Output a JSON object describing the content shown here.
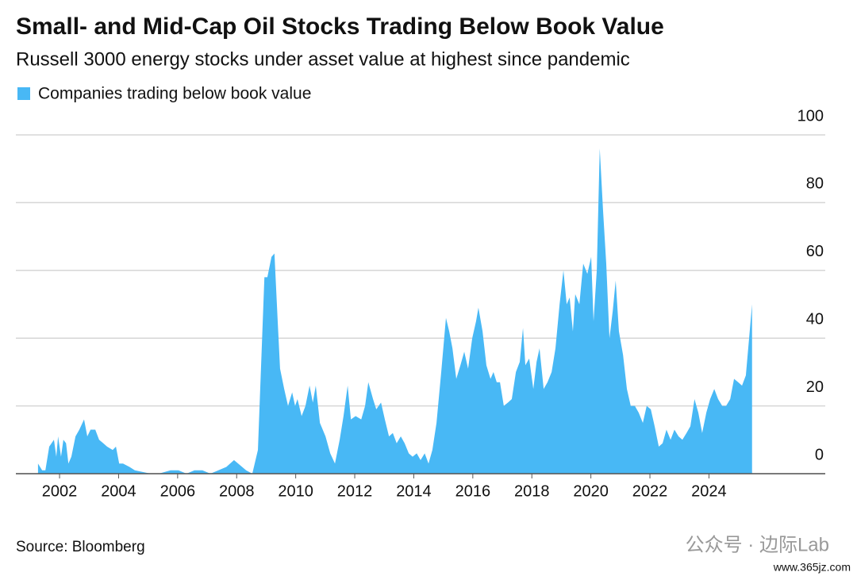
{
  "chart_data": {
    "type": "area",
    "title": "Small- and Mid-Cap Oil Stocks Trading Below Book Value",
    "subtitle": "Russell 3000 energy stocks under asset value at highest since pandemic",
    "source": "Source: Bloomberg",
    "watermark": "公众号 · 边际Lab",
    "watermark_url": "www.365jz.com",
    "xlim": [
      2000.52,
      2027.94
    ],
    "xticks": [
      2002,
      2004,
      2006,
      2008,
      2010,
      2012,
      2014,
      2016,
      2018,
      2020,
      2022,
      2024
    ],
    "ylim": [
      0,
      100
    ],
    "yticks": [
      0,
      20,
      40,
      60,
      80,
      100
    ],
    "grid": true,
    "legend": "top-left",
    "x": [
      2001.27,
      2001.41,
      2001.52,
      2001.65,
      2001.81,
      2001.89,
      2001.95,
      2002.05,
      2002.13,
      2002.22,
      2002.3,
      2002.4,
      2002.54,
      2002.67,
      2002.83,
      2002.94,
      2003.05,
      2003.21,
      2003.34,
      2003.48,
      2003.61,
      2003.8,
      2003.91,
      2004.02,
      2004.15,
      2004.37,
      2004.55,
      2004.82,
      2005.09,
      2005.36,
      2005.76,
      2006.03,
      2006.3,
      2006.57,
      2006.84,
      2007.11,
      2007.38,
      2007.65,
      2007.91,
      2008.05,
      2008.32,
      2008.53,
      2008.72,
      2008.94,
      2009.04,
      2009.18,
      2009.28,
      2009.39,
      2009.47,
      2009.61,
      2009.74,
      2009.88,
      2009.98,
      2010.06,
      2010.2,
      2010.33,
      2010.47,
      2010.58,
      2010.68,
      2010.82,
      2011.01,
      2011.17,
      2011.33,
      2011.49,
      2011.62,
      2011.76,
      2011.87,
      2012.03,
      2012.22,
      2012.35,
      2012.46,
      2012.62,
      2012.73,
      2012.89,
      2013.02,
      2013.16,
      2013.29,
      2013.42,
      2013.56,
      2013.69,
      2013.83,
      2013.96,
      2014.1,
      2014.23,
      2014.37,
      2014.5,
      2014.63,
      2014.77,
      2014.93,
      2015.09,
      2015.2,
      2015.31,
      2015.44,
      2015.58,
      2015.71,
      2015.84,
      2015.98,
      2016.11,
      2016.19,
      2016.33,
      2016.46,
      2016.6,
      2016.7,
      2016.81,
      2016.92,
      2017.05,
      2017.19,
      2017.32,
      2017.46,
      2017.59,
      2017.7,
      2017.78,
      2017.91,
      2018.05,
      2018.16,
      2018.26,
      2018.4,
      2018.53,
      2018.67,
      2018.8,
      2018.94,
      2019.07,
      2019.18,
      2019.28,
      2019.39,
      2019.47,
      2019.61,
      2019.74,
      2019.88,
      2020.01,
      2020.09,
      2020.2,
      2020.3,
      2020.41,
      2020.52,
      2020.63,
      2020.74,
      2020.84,
      2020.95,
      2021.09,
      2021.22,
      2021.35,
      2021.49,
      2021.62,
      2021.76,
      2021.89,
      2022.03,
      2022.16,
      2022.3,
      2022.43,
      2022.56,
      2022.7,
      2022.83,
      2022.97,
      2023.1,
      2023.24,
      2023.37,
      2023.51,
      2023.64,
      2023.77,
      2023.91,
      2024.04,
      2024.18,
      2024.31,
      2024.45,
      2024.58,
      2024.72,
      2024.85,
      2024.99,
      2025.12,
      2025.25,
      2025.36,
      2025.46
    ],
    "series": [
      {
        "name": "Companies trading below book value",
        "color": "#48b8f5",
        "values": [
          3,
          1,
          1,
          8,
          10,
          5,
          11,
          5,
          10,
          9,
          3,
          5,
          11,
          13,
          16,
          11,
          13,
          13,
          10,
          9,
          8,
          7,
          8,
          3,
          3,
          2,
          1,
          0.5,
          0,
          0,
          1,
          1,
          0,
          1,
          1,
          0,
          1,
          2,
          4,
          3,
          1,
          0,
          7,
          58,
          58,
          64,
          65,
          45,
          31,
          25,
          20,
          24,
          20,
          22,
          17,
          20,
          26,
          21,
          26,
          15,
          11,
          6,
          3,
          10,
          17,
          26,
          16,
          17,
          16,
          20,
          27,
          22,
          19,
          21,
          16,
          11,
          12,
          9,
          11,
          9,
          6,
          5,
          6,
          4,
          6,
          3,
          7,
          15,
          30,
          46,
          42,
          37,
          28,
          32,
          36,
          31,
          40,
          45,
          49,
          42,
          32,
          28,
          30,
          27,
          27,
          20,
          21,
          22,
          30,
          33,
          43,
          32,
          34,
          25,
          33,
          37,
          25,
          27,
          30,
          37,
          50,
          60,
          50,
          52,
          42,
          53,
          50,
          62,
          59,
          64,
          45,
          60,
          96,
          78,
          62,
          40,
          48,
          57,
          42,
          35,
          25,
          20,
          20,
          18,
          15,
          20,
          19,
          14,
          8,
          9,
          13,
          10,
          13,
          11,
          10,
          12,
          14,
          22,
          18,
          12,
          18,
          22,
          25,
          22,
          20,
          20,
          22,
          28,
          27,
          26,
          29,
          40,
          50
        ]
      }
    ]
  }
}
